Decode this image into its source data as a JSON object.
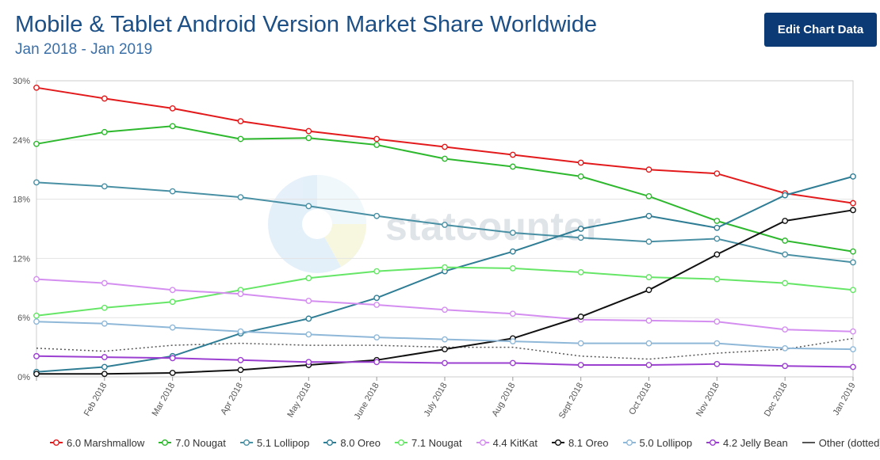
{
  "header": {
    "title": "Mobile & Tablet Android Version Market Share Worldwide",
    "subtitle": "Jan 2018 - Jan 2019",
    "edit_button_label": "Edit Chart Data"
  },
  "watermark": {
    "text": "statcounter"
  },
  "chart_data": {
    "type": "line",
    "title": "Mobile & Tablet Android Version Market Share Worldwide",
    "subtitle": "Jan 2018 - Jan 2019",
    "xlabel": "",
    "ylabel": "",
    "ylim": [
      0,
      30
    ],
    "y_ticks": [
      "0%",
      "6%",
      "12%",
      "18%",
      "24%",
      "30%"
    ],
    "y_tick_values": [
      0,
      6,
      12,
      18,
      24,
      30
    ],
    "grid": true,
    "legend_position": "bottom",
    "categories": [
      "Jan 2018",
      "Feb 2018",
      "Mar 2018",
      "Apr 2018",
      "May 2018",
      "June 2018",
      "July 2018",
      "Aug 2018",
      "Sept 2018",
      "Oct 2018",
      "Nov 2018",
      "Dec 2018",
      "Jan 2019"
    ],
    "x_tick_labels": [
      "",
      "Feb 2018",
      "Mar 2018",
      "Apr 2018",
      "May 2018",
      "June 2018",
      "July 2018",
      "Aug 2018",
      "Sept 2018",
      "Oct 2018",
      "Nov 2018",
      "Dec 2018",
      "Jan 2019"
    ],
    "series": [
      {
        "name": "6.0 Marshmallow",
        "color": "#e31a1c",
        "dotted": false,
        "markers": true,
        "values": [
          29.3,
          28.2,
          27.2,
          25.9,
          24.9,
          24.1,
          23.3,
          22.5,
          21.7,
          21.0,
          20.6,
          18.6,
          17.6
        ]
      },
      {
        "name": "7.0 Nougat",
        "color": "#2eb82e",
        "dotted": false,
        "markers": true,
        "values": [
          23.6,
          24.8,
          25.4,
          24.1,
          24.2,
          23.5,
          22.1,
          21.3,
          20.3,
          18.3,
          15.8,
          13.8,
          12.7
        ]
      },
      {
        "name": "5.1 Lollipop",
        "color": "#4a90a4",
        "dotted": false,
        "markers": true,
        "values": [
          19.7,
          19.3,
          18.8,
          18.2,
          17.3,
          16.3,
          15.4,
          14.6,
          14.1,
          13.7,
          14.0,
          12.4,
          11.6
        ]
      },
      {
        "name": "8.0 Oreo",
        "color": "#2f7d95",
        "dotted": false,
        "markers": true,
        "values": [
          0.5,
          1.0,
          2.1,
          4.4,
          5.9,
          8.0,
          10.7,
          12.7,
          15.0,
          16.3,
          15.1,
          18.4,
          20.3
        ]
      },
      {
        "name": "7.1 Nougat",
        "color": "#66e666",
        "dotted": false,
        "markers": true,
        "values": [
          6.2,
          7.0,
          7.6,
          8.8,
          10.0,
          10.7,
          11.1,
          11.0,
          10.6,
          10.1,
          9.9,
          9.5,
          8.8
        ]
      },
      {
        "name": "4.4 KitKat",
        "color": "#d48ef0",
        "dotted": false,
        "markers": true,
        "values": [
          9.9,
          9.5,
          8.8,
          8.4,
          7.7,
          7.3,
          6.8,
          6.4,
          5.8,
          5.7,
          5.6,
          4.8,
          4.6
        ]
      },
      {
        "name": "8.1 Oreo",
        "color": "#111111",
        "dotted": false,
        "markers": true,
        "values": [
          0.3,
          0.3,
          0.4,
          0.7,
          1.2,
          1.7,
          2.8,
          3.9,
          6.1,
          8.8,
          12.4,
          15.8,
          16.9
        ]
      },
      {
        "name": "5.0 Lollipop",
        "color": "#8fb8d8",
        "dotted": false,
        "markers": true,
        "values": [
          5.6,
          5.4,
          5.0,
          4.6,
          4.3,
          4.0,
          3.8,
          3.6,
          3.4,
          3.4,
          3.4,
          2.9,
          2.8
        ]
      },
      {
        "name": "4.2 Jelly Bean",
        "color": "#9b3fd1",
        "dotted": false,
        "markers": true,
        "values": [
          2.1,
          2.0,
          1.9,
          1.7,
          1.5,
          1.5,
          1.4,
          1.4,
          1.2,
          1.2,
          1.3,
          1.1,
          1.0
        ]
      },
      {
        "name": "Other (dotted)",
        "color": "#555555",
        "dotted": true,
        "markers": false,
        "values": [
          2.9,
          2.6,
          3.2,
          3.4,
          3.2,
          3.2,
          3.0,
          3.0,
          2.1,
          1.8,
          2.4,
          2.8,
          3.9
        ]
      }
    ]
  }
}
